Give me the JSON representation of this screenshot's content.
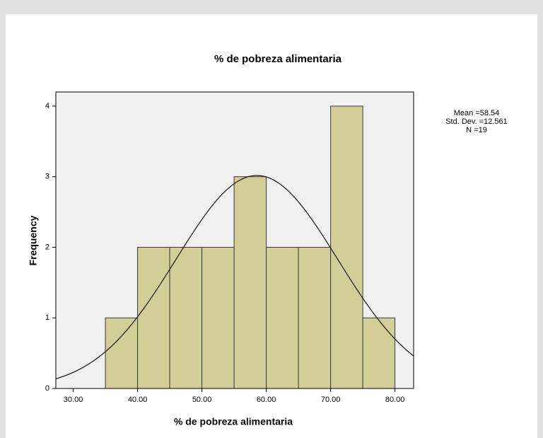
{
  "chart_data": {
    "type": "histogram",
    "title": "% de pobreza alimentaria",
    "x_label": "% de pobreza alimentaria",
    "y_label": "Frequency",
    "bins": [
      35,
      40,
      45,
      50,
      55,
      60,
      65,
      70,
      75,
      80
    ],
    "values": [
      1,
      2,
      2,
      2,
      3,
      2,
      2,
      4,
      1
    ],
    "color": "#d3ce97",
    "xlim": [
      27.3,
      82.9
    ],
    "ylim": [
      0,
      4.2
    ],
    "xticks": [
      {
        "value": 30,
        "label": "30.00"
      },
      {
        "value": 40,
        "label": "40.00"
      },
      {
        "value": 50,
        "label": "50.00"
      },
      {
        "value": 60,
        "label": "60.00"
      },
      {
        "value": 70,
        "label": "70.00"
      },
      {
        "value": 80,
        "label": "80.00"
      }
    ],
    "yticks": [
      0,
      1,
      2,
      3,
      4
    ],
    "stats": {
      "mean": 58.54,
      "std_dev": 12.561,
      "n": 19
    },
    "stats_labels": {
      "mean": "Mean =58.54",
      "std_dev": "Std. Dev. =12.561",
      "n": "N =19"
    },
    "normal_curve": true
  }
}
